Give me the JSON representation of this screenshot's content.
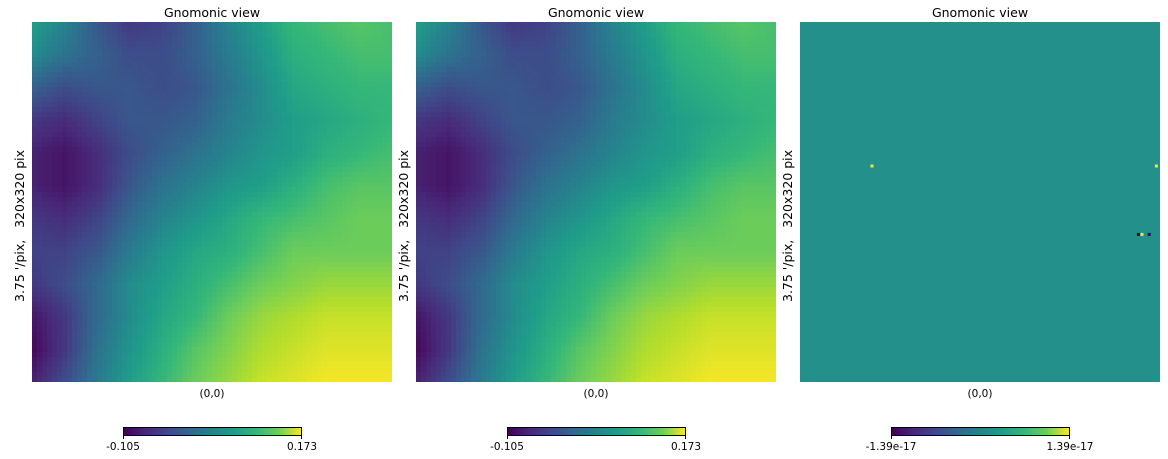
{
  "chart_data": [
    {
      "type": "heatmap",
      "title": "Gnomonic view",
      "ylabel": "3.75 '/pix,   320x320 pix",
      "xlabel": "(0,0)",
      "colormap": "viridis",
      "colorbar": {
        "min": -0.105,
        "max": 0.173,
        "min_label": "-0.105",
        "max_label": "0.173"
      },
      "grid": "off",
      "z": [
        [
          0.05,
          0.02,
          -0.03,
          -0.06,
          -0.05,
          -0.02,
          0.02,
          0.05,
          0.08,
          0.09,
          0.1,
          0.09
        ],
        [
          0.03,
          0.0,
          -0.02,
          -0.04,
          -0.04,
          -0.02,
          0.01,
          0.04,
          0.07,
          0.08,
          0.09,
          0.09
        ],
        [
          -0.02,
          -0.04,
          -0.03,
          -0.03,
          -0.04,
          -0.03,
          0.0,
          0.03,
          0.06,
          0.07,
          0.08,
          0.08
        ],
        [
          -0.06,
          -0.07,
          -0.05,
          -0.03,
          -0.03,
          -0.02,
          0.01,
          0.03,
          0.05,
          0.06,
          0.07,
          0.08
        ],
        [
          -0.08,
          -0.09,
          -0.07,
          -0.04,
          -0.02,
          0.0,
          0.02,
          0.04,
          0.05,
          0.07,
          0.08,
          0.09
        ],
        [
          -0.08,
          -0.09,
          -0.07,
          -0.03,
          0.0,
          0.02,
          0.04,
          0.05,
          0.07,
          0.09,
          0.1,
          0.1
        ],
        [
          -0.06,
          -0.07,
          -0.05,
          -0.01,
          0.02,
          0.04,
          0.06,
          0.08,
          0.09,
          0.1,
          0.11,
          0.11
        ],
        [
          -0.05,
          -0.05,
          -0.03,
          0.01,
          0.04,
          0.06,
          0.07,
          0.09,
          0.11,
          0.11,
          0.11,
          0.11
        ],
        [
          -0.06,
          -0.04,
          -0.01,
          0.03,
          0.05,
          0.07,
          0.09,
          0.11,
          0.12,
          0.13,
          0.13,
          0.13
        ],
        [
          -0.09,
          -0.06,
          -0.01,
          0.03,
          0.06,
          0.08,
          0.11,
          0.13,
          0.14,
          0.15,
          0.15,
          0.15
        ],
        [
          -0.1,
          -0.06,
          0.0,
          0.04,
          0.07,
          0.1,
          0.12,
          0.14,
          0.15,
          0.16,
          0.16,
          0.16
        ],
        [
          -0.08,
          -0.04,
          0.01,
          0.05,
          0.08,
          0.11,
          0.13,
          0.15,
          0.16,
          0.17,
          0.17,
          0.17
        ]
      ]
    },
    {
      "type": "heatmap",
      "title": "Gnomonic view",
      "ylabel": "3.75 '/pix,   320x320 pix",
      "xlabel": "(0,0)",
      "colormap": "viridis",
      "colorbar": {
        "min": -0.105,
        "max": 0.173,
        "min_label": "-0.105",
        "max_label": "0.173"
      },
      "grid": "off",
      "z": [
        [
          0.05,
          0.02,
          -0.03,
          -0.06,
          -0.05,
          -0.02,
          0.02,
          0.05,
          0.08,
          0.09,
          0.1,
          0.09
        ],
        [
          0.03,
          0.0,
          -0.02,
          -0.04,
          -0.04,
          -0.02,
          0.01,
          0.04,
          0.07,
          0.08,
          0.09,
          0.09
        ],
        [
          -0.02,
          -0.04,
          -0.03,
          -0.03,
          -0.04,
          -0.03,
          0.0,
          0.03,
          0.06,
          0.07,
          0.08,
          0.08
        ],
        [
          -0.06,
          -0.07,
          -0.05,
          -0.03,
          -0.03,
          -0.02,
          0.01,
          0.03,
          0.05,
          0.06,
          0.07,
          0.08
        ],
        [
          -0.08,
          -0.09,
          -0.07,
          -0.04,
          -0.02,
          0.0,
          0.02,
          0.04,
          0.05,
          0.07,
          0.08,
          0.09
        ],
        [
          -0.08,
          -0.09,
          -0.07,
          -0.03,
          0.0,
          0.02,
          0.04,
          0.05,
          0.07,
          0.09,
          0.1,
          0.1
        ],
        [
          -0.06,
          -0.07,
          -0.05,
          -0.01,
          0.02,
          0.04,
          0.06,
          0.08,
          0.09,
          0.1,
          0.11,
          0.11
        ],
        [
          -0.05,
          -0.05,
          -0.03,
          0.01,
          0.04,
          0.06,
          0.07,
          0.09,
          0.11,
          0.11,
          0.11,
          0.11
        ],
        [
          -0.06,
          -0.04,
          -0.01,
          0.03,
          0.05,
          0.07,
          0.09,
          0.11,
          0.12,
          0.13,
          0.13,
          0.13
        ],
        [
          -0.09,
          -0.06,
          -0.01,
          0.03,
          0.06,
          0.08,
          0.11,
          0.13,
          0.14,
          0.15,
          0.15,
          0.15
        ],
        [
          -0.1,
          -0.06,
          0.0,
          0.04,
          0.07,
          0.1,
          0.12,
          0.14,
          0.15,
          0.16,
          0.16,
          0.16
        ],
        [
          -0.08,
          -0.04,
          0.01,
          0.05,
          0.08,
          0.11,
          0.13,
          0.15,
          0.16,
          0.17,
          0.17,
          0.17
        ]
      ]
    },
    {
      "type": "heatmap",
      "title": "Gnomonic view",
      "ylabel": "3.75 '/pix,   320x320 pix",
      "xlabel": "(0,0)",
      "colormap": "viridis",
      "colorbar": {
        "min": -1.39e-17,
        "max": 1.39e-17,
        "min_label": "-1.39e-17",
        "max_label": "1.39e-17"
      },
      "grid": "off",
      "uniform_value": 0,
      "outlier_pixels": [
        {
          "x": 0.2,
          "y": 0.4,
          "value": 1.39e-17
        },
        {
          "x": 0.99,
          "y": 0.4,
          "value": 1.39e-17
        },
        {
          "x": 0.94,
          "y": 0.59,
          "value": -1.39e-17
        },
        {
          "x": 0.95,
          "y": 0.59,
          "value": 1.39e-17
        },
        {
          "x": 0.97,
          "y": 0.59,
          "value": -1.39e-17
        }
      ]
    }
  ]
}
